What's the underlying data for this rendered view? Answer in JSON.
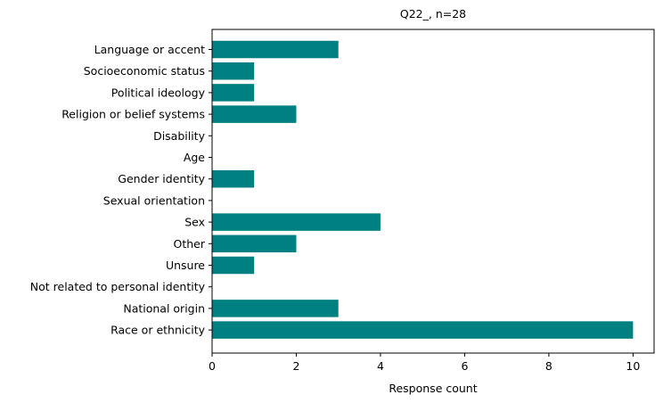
{
  "chart_data": {
    "type": "bar",
    "orientation": "horizontal",
    "title": "Q22_, n=28",
    "xlabel": "Response count",
    "ylabel": "",
    "xlim": [
      0,
      10.5
    ],
    "xticks": [
      0,
      2,
      4,
      6,
      8,
      10
    ],
    "grid": false,
    "bar_color": "#008080",
    "categories": [
      "Language or accent",
      "Socioeconomic status",
      "Political ideology",
      "Religion or belief systems",
      "Disability",
      "Age",
      "Gender identity",
      "Sexual orientation",
      "Sex",
      "Other",
      "Unsure",
      "Not related to personal identity",
      "National origin",
      "Race or ethnicity"
    ],
    "values": [
      3,
      1,
      1,
      2,
      0,
      0,
      1,
      0,
      4,
      2,
      1,
      0,
      3,
      10
    ]
  }
}
